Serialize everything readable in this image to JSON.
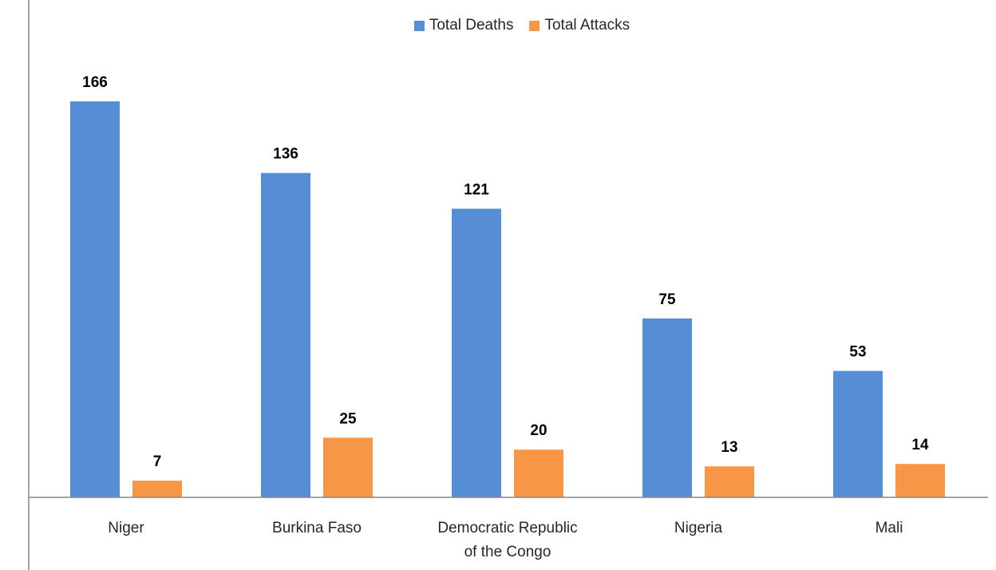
{
  "chart_data": {
    "type": "bar",
    "categories": [
      "Niger",
      "Burkina Faso",
      "Democratic Republic of the Congo",
      "Nigeria",
      "Mali"
    ],
    "category_lines": [
      [
        "Niger"
      ],
      [
        "Burkina Faso"
      ],
      [
        "Democratic Republic",
        "of the Congo"
      ],
      [
        "Nigeria"
      ],
      [
        "Mali"
      ]
    ],
    "series": [
      {
        "name": "Total Deaths",
        "values": [
          166,
          136,
          121,
          75,
          53
        ],
        "color": "#558ED5"
      },
      {
        "name": "Total Attacks",
        "values": [
          7,
          25,
          20,
          13,
          14
        ],
        "color": "#F79646"
      }
    ],
    "title": "",
    "xlabel": "",
    "ylabel": "",
    "ylim": [
      0,
      166
    ],
    "data_labels": true,
    "grid": false,
    "legend_position": "top-center"
  }
}
